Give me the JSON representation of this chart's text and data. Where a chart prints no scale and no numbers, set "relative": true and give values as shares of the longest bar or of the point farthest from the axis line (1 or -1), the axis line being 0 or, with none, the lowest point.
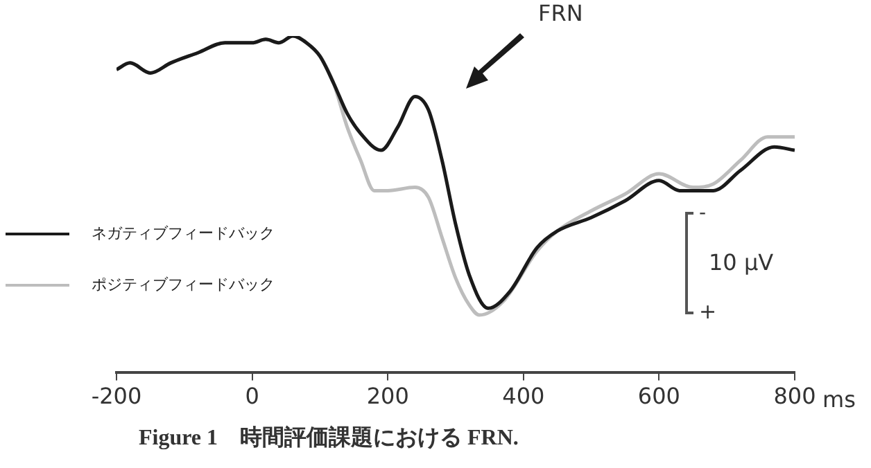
{
  "chart_data": {
    "type": "line",
    "relative": true,
    "xlabel": "ms",
    "xlim": [
      -200,
      800
    ],
    "xticks": [
      -200,
      0,
      200,
      400,
      600,
      800
    ],
    "grid": false,
    "legend": "left",
    "marker": "none",
    "line_style": "solid",
    "series": [
      {
        "name": "ネガティブフィードバック",
        "color": "#1a1a1a",
        "x": [
          -200,
          -180,
          -150,
          -120,
          -80,
          -40,
          0,
          20,
          40,
          60,
          80,
          100,
          120,
          140,
          160,
          190,
          215,
          240,
          260,
          280,
          300,
          320,
          348,
          380,
          420,
          450,
          500,
          550,
          600,
          630,
          680,
          720,
          770,
          800
        ],
        "values": [
          0.9,
          0.92,
          0.89,
          0.92,
          0.95,
          0.98,
          0.98,
          0.99,
          0.98,
          1.0,
          0.98,
          0.94,
          0.86,
          0.77,
          0.71,
          0.66,
          0.73,
          0.82,
          0.78,
          0.63,
          0.44,
          0.29,
          0.19,
          0.24,
          0.37,
          0.42,
          0.46,
          0.51,
          0.57,
          0.54,
          0.54,
          0.6,
          0.67,
          0.66
        ]
      },
      {
        "name": "ポジティブフィードバック",
        "color": "#bdbdbd",
        "x": [
          -200,
          -180,
          -150,
          -120,
          -80,
          -40,
          0,
          20,
          40,
          60,
          80,
          100,
          120,
          140,
          160,
          180,
          200,
          240,
          260,
          280,
          300,
          320,
          335,
          370,
          420,
          450,
          500,
          550,
          600,
          650,
          680,
          720,
          760,
          800
        ],
        "values": [
          0.9,
          0.92,
          0.89,
          0.92,
          0.95,
          0.98,
          0.98,
          0.99,
          0.98,
          1.0,
          0.98,
          0.94,
          0.86,
          0.73,
          0.63,
          0.54,
          0.54,
          0.55,
          0.52,
          0.4,
          0.28,
          0.2,
          0.17,
          0.21,
          0.36,
          0.42,
          0.48,
          0.53,
          0.59,
          0.55,
          0.56,
          0.63,
          0.7,
          0.7
        ]
      }
    ],
    "annotations": [
      "FRN",
      "-",
      "10 µV",
      "+",
      "Figure 1　時間評価課題における FRN."
    ]
  }
}
